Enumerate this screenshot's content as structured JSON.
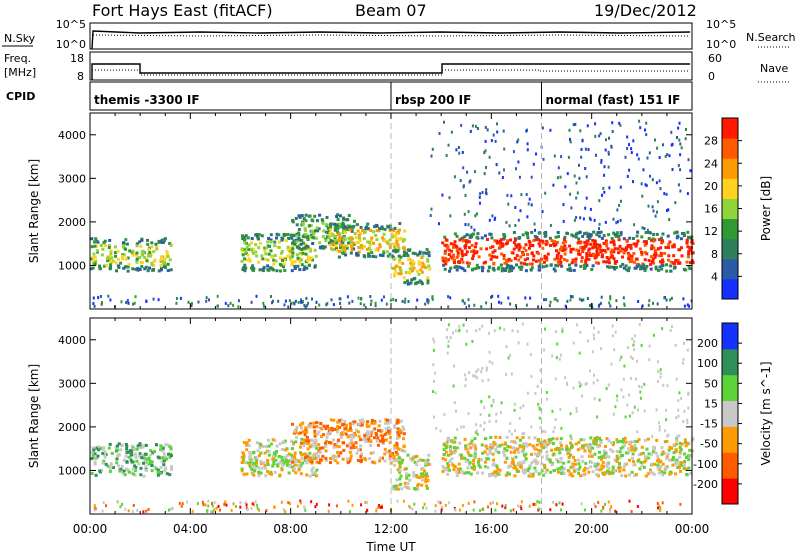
{
  "header": {
    "station": "Fort Hays East (fitACF)",
    "beam": "Beam 07",
    "date": "19/Dec/2012"
  },
  "strip_labels": {
    "nsky": "N.Sky",
    "nsearch": "N.Search",
    "freq_l1": "Freq.",
    "freq_l2": "[MHz]",
    "nave": "Nave",
    "cpid": "CPID",
    "noise_ticks_left": [
      "10^5",
      "10^0"
    ],
    "noise_ticks_right": [
      "10^5",
      "10^0"
    ],
    "freq_ticks": [
      "18",
      "8"
    ],
    "nave_ticks": [
      "60",
      "0"
    ]
  },
  "modes": [
    {
      "label": "themis -3300 IF",
      "start": 0
    },
    {
      "label": "rbsp 200 IF",
      "start": 12
    },
    {
      "label": "normal (fast) 151 IF",
      "start": 18
    }
  ],
  "colors": {
    "power": [
      "#1530ff",
      "#2a5aa8",
      "#2e7f5a",
      "#2f9a33",
      "#8fd43a",
      "#ffd21f",
      "#ff9a00",
      "#ff5a00",
      "#ff1a00"
    ],
    "velocity": [
      "#ff0000",
      "#ff5a00",
      "#ff9a00",
      "#c8c8c8",
      "#5dd33a",
      "#2e8f57",
      "#1530ff"
    ],
    "frame": "#000000",
    "dash": "#b8b8b8"
  },
  "chart_data": {
    "type": "heatmap",
    "xlabel": "Time UT",
    "xlim": [
      0,
      24
    ],
    "x_ticks": [
      "00:00",
      "04:00",
      "08:00",
      "12:00",
      "16:00",
      "20:00",
      "00:00"
    ],
    "ylabel": "Slant Range [km]",
    "ylim": [
      0,
      4500
    ],
    "y_ticks": [
      "1000",
      "2000",
      "3000",
      "4000"
    ],
    "panels": [
      {
        "name": "power",
        "colorbar_label": "Power [dB]",
        "colorbar_ticks": [
          "4",
          "8",
          "12",
          "16",
          "20",
          "24",
          "28"
        ],
        "echo_regions": [
          {
            "t0": 0.0,
            "t1": 3.2,
            "r0": 900,
            "r1": 1650,
            "level": 4
          },
          {
            "t0": 6.0,
            "t1": 9.0,
            "r0": 900,
            "r1": 1750,
            "level": 4
          },
          {
            "t0": 8.0,
            "t1": 10.5,
            "r0": 1400,
            "r1": 2200,
            "level": 3
          },
          {
            "t0": 9.5,
            "t1": 12.5,
            "r0": 1200,
            "r1": 2000,
            "level": 5
          },
          {
            "t0": 12.0,
            "t1": 13.5,
            "r0": 600,
            "r1": 1400,
            "level": 5
          },
          {
            "t0": 14.0,
            "t1": 24.0,
            "r0": 900,
            "r1": 1800,
            "level": 8
          }
        ]
      },
      {
        "name": "velocity",
        "colorbar_label": "Velocity [m s^-1]",
        "colorbar_ticks": [
          "-200",
          "-100",
          "-50",
          "-15",
          "15",
          "50",
          "100",
          "200"
        ],
        "echo_regions": [
          {
            "t0": 0.0,
            "t1": 3.2,
            "r0": 900,
            "r1": 1650,
            "level": 4
          },
          {
            "t0": 6.0,
            "t1": 9.0,
            "r0": 900,
            "r1": 1750,
            "level": 3
          },
          {
            "t0": 8.0,
            "t1": 12.5,
            "r0": 1200,
            "r1": 2200,
            "level": 2
          },
          {
            "t0": 12.0,
            "t1": 13.5,
            "r0": 600,
            "r1": 1400,
            "level": 3
          },
          {
            "t0": 14.0,
            "t1": 24.0,
            "r0": 900,
            "r1": 1800,
            "level": 3
          }
        ]
      }
    ]
  }
}
